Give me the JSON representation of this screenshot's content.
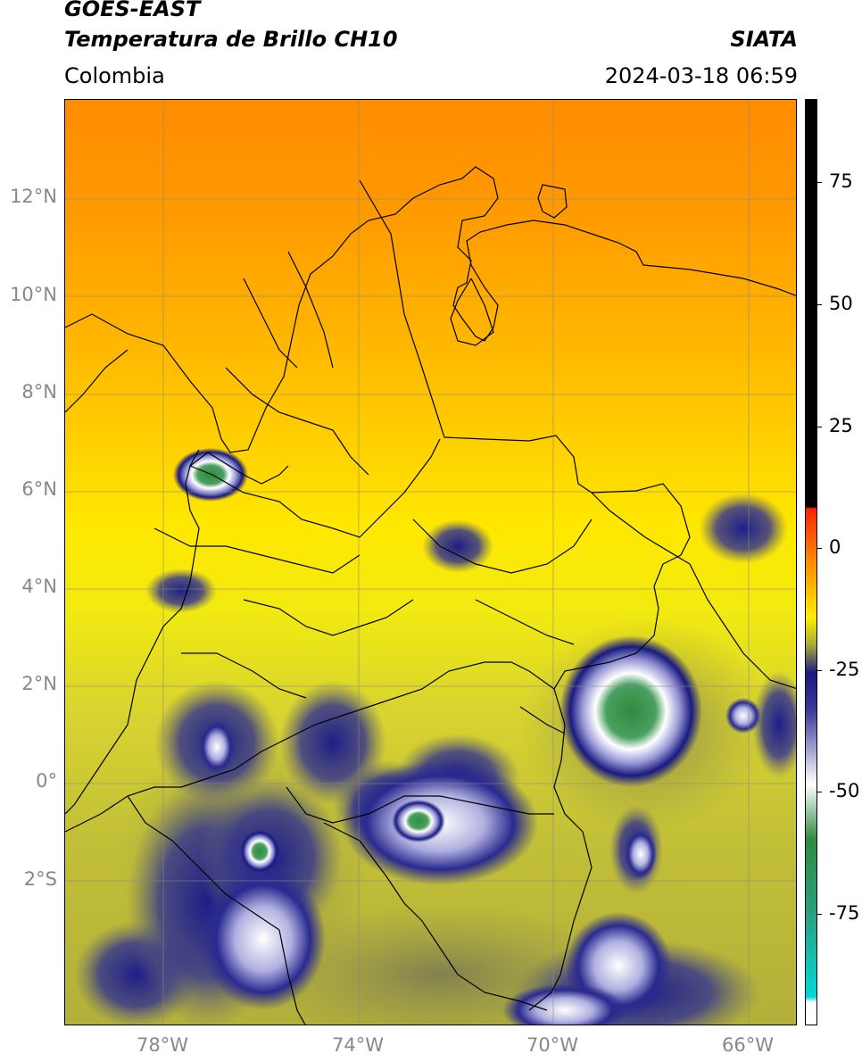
{
  "header": {
    "title_line1": "GOES-EAST",
    "title_line2": "Temperatura de Brillo CH10",
    "subtitle": "Colombia",
    "agency": "SIATA",
    "timestamp": "2024-03-18 06:59"
  },
  "map": {
    "region": "Colombia",
    "lat_ticks": [
      "12°N",
      "10°N",
      "8°N",
      "6°N",
      "4°N",
      "2°N",
      "0°",
      "2°S"
    ],
    "lon_ticks": [
      "78°W",
      "74°W",
      "70°W",
      "66°W"
    ],
    "gridlines": true
  },
  "colorbar": {
    "ticks": [
      "75",
      "50",
      "25",
      "0",
      "-25",
      "-50",
      "-75"
    ],
    "colors": {
      "top": "#000000",
      "warm": "#ff2200",
      "orange": "#ff8c00",
      "yellow": "#ffee00",
      "olive": "#a8a838",
      "dark_blue": "#1a1a80",
      "white": "#ffffff",
      "green": "#2e8b3e",
      "cyan": "#00d8d8"
    }
  }
}
